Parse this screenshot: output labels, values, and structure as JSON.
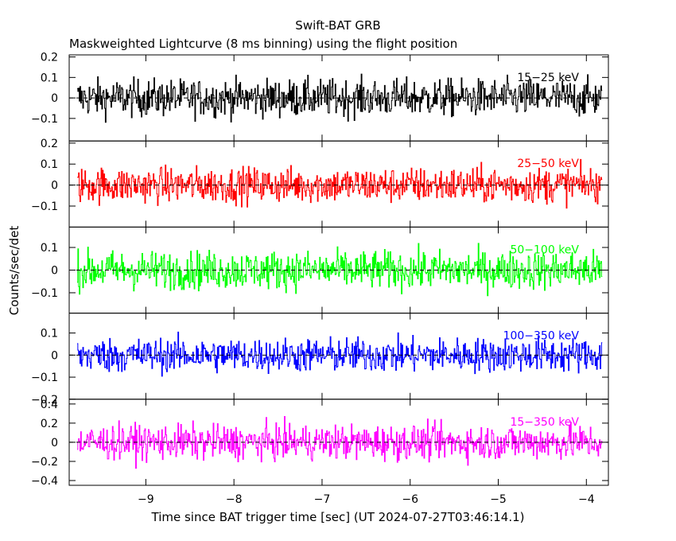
{
  "chart_data": {
    "type": "line",
    "title": "Swift-BAT GRB",
    "subtitle": "Maskweighted Lightcurve (8 ms binning) using the flight position",
    "xlabel": "Time since BAT trigger time [sec] (UT 2024-07-27T03:46:14.1)",
    "ylabel": "Counts/sec/det",
    "xlim": [
      -9.87,
      -3.75
    ],
    "x_ticks": [
      -9,
      -8,
      -7,
      -6,
      -5,
      -4
    ],
    "x_tick_labels": [
      "−9",
      "−8",
      "−7",
      "−6",
      "−5",
      "−4"
    ],
    "x_data_range": [
      -9.78,
      -3.82
    ],
    "bin_seconds": 0.008,
    "grid": false,
    "series": [
      {
        "name": "15−25 keV",
        "color": "#000000",
        "ylim": [
          -0.21,
          0.21
        ],
        "y_ticks": [
          -0.1,
          0,
          0.1,
          0.2
        ],
        "y_tick_labels": [
          "−0.1",
          "0",
          "0.1",
          "0.2"
        ],
        "amplitude": 0.065
      },
      {
        "name": "25−50 keV",
        "color": "#ff0000",
        "ylim": [
          -0.2,
          0.21
        ],
        "y_ticks": [
          -0.1,
          0,
          0.1,
          0.2
        ],
        "y_tick_labels": [
          "−0.1",
          "0",
          "0.1",
          "0.2"
        ],
        "amplitude": 0.06
      },
      {
        "name": "50−100 keV",
        "color": "#00ff00",
        "ylim": [
          -0.19,
          0.19
        ],
        "y_ticks": [
          -0.1,
          0,
          0.1
        ],
        "y_tick_labels": [
          "−0.1",
          "0",
          "0.1"
        ],
        "amplitude": 0.06
      },
      {
        "name": "100−350 keV",
        "color": "#0000ff",
        "ylim": [
          -0.2,
          0.19
        ],
        "y_ticks": [
          -0.2,
          -0.1,
          0,
          0.1
        ],
        "y_tick_labels": [
          "−0.2",
          "−0.1",
          "0",
          "0.1"
        ],
        "amplitude": 0.055
      },
      {
        "name": "15−350 keV",
        "color": "#ff00ff",
        "ylim": [
          -0.45,
          0.45
        ],
        "y_ticks": [
          -0.4,
          -0.2,
          0,
          0.2,
          0.4
        ],
        "y_tick_labels": [
          "−0.4",
          "−0.2",
          "0",
          "0.2",
          "0.4"
        ],
        "amplitude": 0.13
      }
    ]
  }
}
